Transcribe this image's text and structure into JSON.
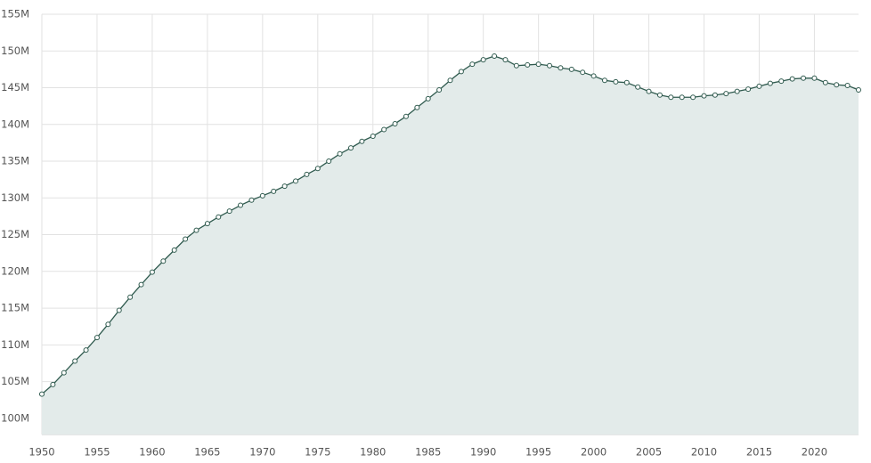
{
  "chart_data": {
    "type": "area",
    "x": [
      1950,
      1951,
      1952,
      1953,
      1954,
      1955,
      1956,
      1957,
      1958,
      1959,
      1960,
      1961,
      1962,
      1963,
      1964,
      1965,
      1966,
      1967,
      1968,
      1969,
      1970,
      1971,
      1972,
      1973,
      1974,
      1975,
      1976,
      1977,
      1978,
      1979,
      1980,
      1981,
      1982,
      1983,
      1984,
      1985,
      1986,
      1987,
      1988,
      1989,
      1990,
      1991,
      1992,
      1993,
      1994,
      1995,
      1996,
      1997,
      1998,
      1999,
      2000,
      2001,
      2002,
      2003,
      2004,
      2005,
      2006,
      2007,
      2008,
      2009,
      2010,
      2011,
      2012,
      2013,
      2014,
      2015,
      2016,
      2017,
      2018,
      2019,
      2020,
      2021,
      2022,
      2023,
      2024
    ],
    "values": [
      103.3,
      104.6,
      106.2,
      107.8,
      109.3,
      111.0,
      112.8,
      114.7,
      116.5,
      118.2,
      119.9,
      121.4,
      122.9,
      124.4,
      125.6,
      126.5,
      127.4,
      128.2,
      129.0,
      129.7,
      130.3,
      130.9,
      131.6,
      132.3,
      133.2,
      134.0,
      135.0,
      136.0,
      136.8,
      137.7,
      138.4,
      139.3,
      140.1,
      141.1,
      142.3,
      143.5,
      144.7,
      146.0,
      147.2,
      148.2,
      148.8,
      149.3,
      148.8,
      148.0,
      148.1,
      148.2,
      148.0,
      147.7,
      147.5,
      147.1,
      146.6,
      146.0,
      145.8,
      145.7,
      145.1,
      144.5,
      144.0,
      143.7,
      143.7,
      143.7,
      143.9,
      144.0,
      144.2,
      144.5,
      144.8,
      145.2,
      145.6,
      145.9,
      146.2,
      146.3,
      146.3,
      145.7,
      145.4,
      145.3,
      144.7
    ],
    "color": "#2f5a4e",
    "fill_color": "#e3ebea",
    "xlim": [
      1950,
      2024
    ],
    "xticks": [
      1950,
      1955,
      1960,
      1965,
      1970,
      1975,
      1980,
      1985,
      1990,
      1995,
      2000,
      2005,
      2010,
      2015,
      2020
    ],
    "ylim": [
      97.8,
      155
    ],
    "yticks": [
      {
        "value": 100,
        "label": "100M"
      },
      {
        "value": 105,
        "label": "105M"
      },
      {
        "value": 110,
        "label": "110M"
      },
      {
        "value": 115,
        "label": "115M"
      },
      {
        "value": 120,
        "label": "120M"
      },
      {
        "value": 125,
        "label": "125M"
      },
      {
        "value": 130,
        "label": "130M"
      },
      {
        "value": 135,
        "label": "135M"
      },
      {
        "value": 140,
        "label": "140M"
      },
      {
        "value": 145,
        "label": "145M"
      },
      {
        "value": 150,
        "label": "150M"
      },
      {
        "value": 155,
        "label": "155M"
      }
    ],
    "grid": true
  }
}
